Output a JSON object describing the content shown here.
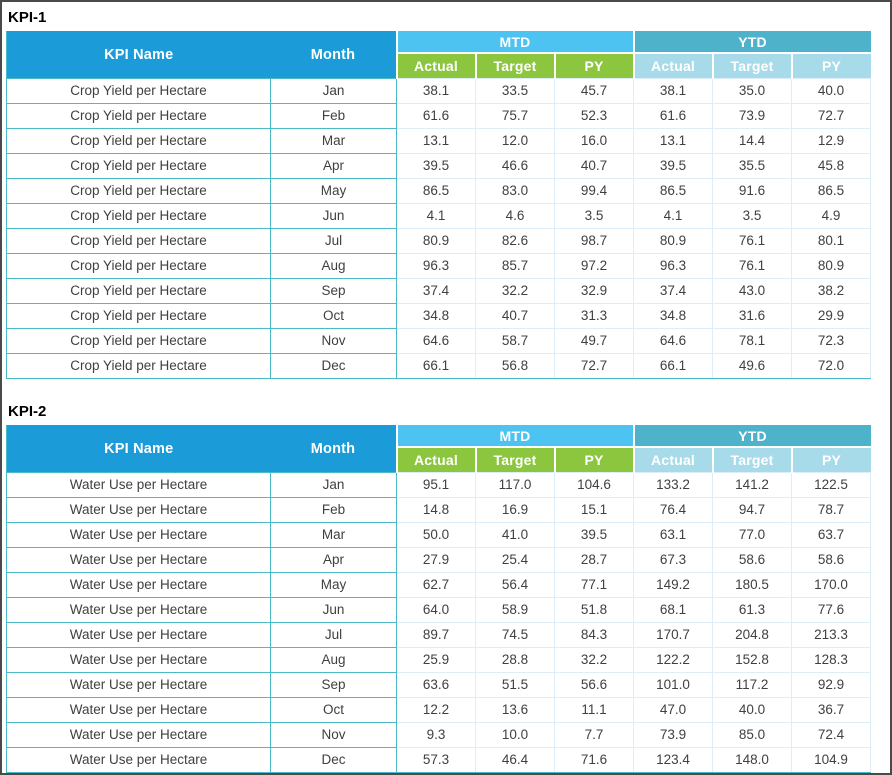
{
  "headers": {
    "kpi_name": "KPI Name",
    "month": "Month",
    "mtd": "MTD",
    "ytd": "YTD",
    "actual": "Actual",
    "target": "Target",
    "py": "PY"
  },
  "colors": {
    "header_blue": "#1b9cd8",
    "mtd_band_blue": "#4dc3f2",
    "ytd_band_teal": "#4fb2cb",
    "mtd_sub_green": "#8cc63e",
    "ytd_sub_pale_blue": "#a8dbea",
    "teal_border": "#4cb9c9",
    "light_border": "#ddeef8",
    "data_text": "#404040",
    "frame_border": "#4a4a4a"
  },
  "tables": [
    {
      "title": "KPI-1",
      "kpi_name": "Crop Yield per Hectare",
      "rows": [
        [
          "Crop Yield per Hectare",
          "Jan",
          "38.1",
          "33.5",
          "45.7",
          "38.1",
          "35.0",
          "40.0"
        ],
        [
          "Crop Yield per Hectare",
          "Feb",
          "61.6",
          "75.7",
          "52.3",
          "61.6",
          "73.9",
          "72.7"
        ],
        [
          "Crop Yield per Hectare",
          "Mar",
          "13.1",
          "12.0",
          "16.0",
          "13.1",
          "14.4",
          "12.9"
        ],
        [
          "Crop Yield per Hectare",
          "Apr",
          "39.5",
          "46.6",
          "40.7",
          "39.5",
          "35.5",
          "45.8"
        ],
        [
          "Crop Yield per Hectare",
          "May",
          "86.5",
          "83.0",
          "99.4",
          "86.5",
          "91.6",
          "86.5"
        ],
        [
          "Crop Yield per Hectare",
          "Jun",
          "4.1",
          "4.6",
          "3.5",
          "4.1",
          "3.5",
          "4.9"
        ],
        [
          "Crop Yield per Hectare",
          "Jul",
          "80.9",
          "82.6",
          "98.7",
          "80.9",
          "76.1",
          "80.1"
        ],
        [
          "Crop Yield per Hectare",
          "Aug",
          "96.3",
          "85.7",
          "97.2",
          "96.3",
          "76.1",
          "80.9"
        ],
        [
          "Crop Yield per Hectare",
          "Sep",
          "37.4",
          "32.2",
          "32.9",
          "37.4",
          "43.0",
          "38.2"
        ],
        [
          "Crop Yield per Hectare",
          "Oct",
          "34.8",
          "40.7",
          "31.3",
          "34.8",
          "31.6",
          "29.9"
        ],
        [
          "Crop Yield per Hectare",
          "Nov",
          "64.6",
          "58.7",
          "49.7",
          "64.6",
          "78.1",
          "72.3"
        ],
        [
          "Crop Yield per Hectare",
          "Dec",
          "66.1",
          "56.8",
          "72.7",
          "66.1",
          "49.6",
          "72.0"
        ]
      ]
    },
    {
      "title": "KPI-2",
      "kpi_name": "Water Use per Hectare",
      "rows": [
        [
          "Water Use per Hectare",
          "Jan",
          "95.1",
          "117.0",
          "104.6",
          "133.2",
          "141.2",
          "122.5"
        ],
        [
          "Water Use per Hectare",
          "Feb",
          "14.8",
          "16.9",
          "15.1",
          "76.4",
          "94.7",
          "78.7"
        ],
        [
          "Water Use per Hectare",
          "Mar",
          "50.0",
          "41.0",
          "39.5",
          "63.1",
          "77.0",
          "63.7"
        ],
        [
          "Water Use per Hectare",
          "Apr",
          "27.9",
          "25.4",
          "28.7",
          "67.3",
          "58.6",
          "58.6"
        ],
        [
          "Water Use per Hectare",
          "May",
          "62.7",
          "56.4",
          "77.1",
          "149.2",
          "180.5",
          "170.0"
        ],
        [
          "Water Use per Hectare",
          "Jun",
          "64.0",
          "58.9",
          "51.8",
          "68.1",
          "61.3",
          "77.6"
        ],
        [
          "Water Use per Hectare",
          "Jul",
          "89.7",
          "74.5",
          "84.3",
          "170.7",
          "204.8",
          "213.3"
        ],
        [
          "Water Use per Hectare",
          "Aug",
          "25.9",
          "28.8",
          "32.2",
          "122.2",
          "152.8",
          "128.3"
        ],
        [
          "Water Use per Hectare",
          "Sep",
          "63.6",
          "51.5",
          "56.6",
          "101.0",
          "117.2",
          "92.9"
        ],
        [
          "Water Use per Hectare",
          "Oct",
          "12.2",
          "13.6",
          "11.1",
          "47.0",
          "40.0",
          "36.7"
        ],
        [
          "Water Use per Hectare",
          "Nov",
          "9.3",
          "10.0",
          "7.7",
          "73.9",
          "85.0",
          "72.4"
        ],
        [
          "Water Use per Hectare",
          "Dec",
          "57.3",
          "46.4",
          "71.6",
          "123.4",
          "148.0",
          "104.9"
        ]
      ]
    }
  ]
}
